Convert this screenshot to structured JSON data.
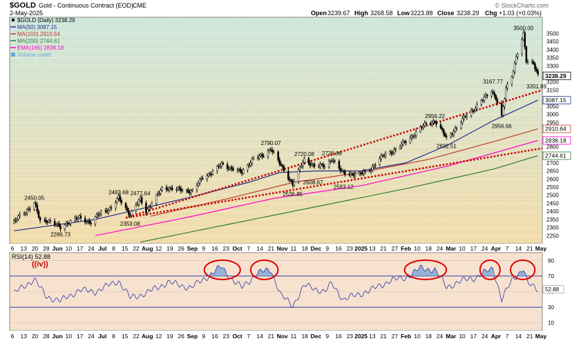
{
  "header": {
    "symbol": "$GOLD",
    "name": "Gold - Continuous Contract (EOD)",
    "exchange": "CME",
    "date": "2-May-2025",
    "open_label": "Open",
    "open": "3239.67",
    "high_label": "High",
    "high": "3268.58",
    "low_label": "Low",
    "low": "3223.88",
    "close_label": "Close",
    "close": "3238.29",
    "chg_label": "Chg",
    "chg": "+1.03 (+0.03%)",
    "watermark": "© StockCharts.com"
  },
  "legend": [
    {
      "text": "$GOLD (Daily) 3238.29",
      "color": "#000000",
      "kind": "price"
    },
    {
      "text": "MA(50) 3087.15",
      "color": "#1f2a8a",
      "kind": "line"
    },
    {
      "text": "MA(100) 2910.64",
      "color": "#c0392b",
      "kind": "line"
    },
    {
      "text": "MA(200) 2744.61",
      "color": "#2e7d32",
      "kind": "line"
    },
    {
      "text": "EMA(165) 2838.18",
      "color": "#ff00cc",
      "kind": "line"
    },
    {
      "text": "Volume undef",
      "color": "#66aadd",
      "kind": "box"
    }
  ],
  "rsi": {
    "label": "RSI(14) 52.88",
    "wave_label": "((iv))",
    "last_value": "52.88",
    "yticks": [
      "90",
      "70",
      "50",
      "30",
      "10"
    ],
    "overbought": 70,
    "oversold": 30
  },
  "colors": {
    "price_bg_top": "#cfe7dc",
    "price_bg_bottom": "#f3dcaa",
    "rsi_bg": "#f6e2cf",
    "ma50": "#1f2a8a",
    "ma100": "#c0392b",
    "ma200": "#2e7d32",
    "ema165": "#ff00cc",
    "trend": "#cc0000",
    "rsi_line": "#2233aa",
    "rsi_fill": "#7ea6d6"
  },
  "chart_data": {
    "type": "candlestick",
    "ylim": [
      2200,
      3600
    ],
    "yticks": [
      2250,
      2300,
      2350,
      2400,
      2450,
      2500,
      2550,
      2600,
      2650,
      2700,
      2750,
      2800,
      2850,
      2900,
      2950,
      3000,
      3050,
      3100,
      3150,
      3200,
      3250,
      3300,
      3350,
      3400,
      3450,
      3500
    ],
    "xticks": [
      "6",
      "13",
      "20",
      "28",
      "Jun",
      "10",
      "17",
      "24",
      "Jul",
      "8",
      "15",
      "22",
      "Aug",
      "12",
      "19",
      "26",
      "Sep",
      "9",
      "16",
      "23",
      "Oct",
      "7",
      "14",
      "21",
      "Nov",
      "11",
      "18",
      "Dec",
      "9",
      "16",
      "23",
      "2025",
      "13",
      "21",
      "27",
      "Feb",
      "10",
      "18",
      "24",
      "Mar",
      "10",
      "17",
      "24",
      "Apr",
      "7",
      "14",
      "21",
      "May"
    ],
    "bold_xticks": [
      "Jun",
      "Jul",
      "Aug",
      "Sep",
      "Oct",
      "Nov",
      "Dec",
      "2025",
      "Feb",
      "Mar",
      "Apr",
      "May"
    ],
    "close_path": [
      [
        "2024-05-06",
        2330
      ],
      [
        "2024-05-10",
        2375
      ],
      [
        "2024-05-17",
        2420
      ],
      [
        "2024-05-20",
        2450
      ],
      [
        "2024-05-24",
        2340
      ],
      [
        "2024-05-29",
        2345
      ],
      [
        "2024-06-07",
        2300
      ],
      [
        "2024-06-12",
        2330
      ],
      [
        "2024-06-20",
        2360
      ],
      [
        "2024-06-28",
        2330
      ],
      [
        "2024-07-05",
        2395
      ],
      [
        "2024-07-12",
        2420
      ],
      [
        "2024-07-17",
        2483
      ],
      [
        "2024-07-25",
        2380
      ],
      [
        "2024-08-01",
        2475
      ],
      [
        "2024-08-05",
        2400
      ],
      [
        "2024-08-16",
        2540
      ],
      [
        "2024-08-20",
        2545
      ],
      [
        "2024-08-30",
        2530
      ],
      [
        "2024-09-06",
        2525
      ],
      [
        "2024-09-13",
        2610
      ],
      [
        "2024-09-20",
        2645
      ],
      [
        "2024-09-26",
        2690
      ],
      [
        "2024-10-03",
        2665
      ],
      [
        "2024-10-10",
        2640
      ],
      [
        "2024-10-18",
        2730
      ],
      [
        "2024-10-24",
        2740
      ],
      [
        "2024-10-30",
        2790
      ],
      [
        "2024-11-06",
        2680
      ],
      [
        "2024-11-14",
        2570
      ],
      [
        "2024-11-22",
        2720
      ],
      [
        "2024-11-29",
        2680
      ],
      [
        "2024-12-06",
        2680
      ],
      [
        "2024-12-11",
        2725
      ],
      [
        "2024-12-18",
        2640
      ],
      [
        "2024-12-30",
        2625
      ],
      [
        "2025-01-07",
        2665
      ],
      [
        "2025-01-16",
        2750
      ],
      [
        "2025-01-24",
        2780
      ],
      [
        "2025-01-31",
        2835
      ],
      [
        "2025-02-07",
        2885
      ],
      [
        "2025-02-14",
        2945
      ],
      [
        "2025-02-20",
        2956
      ],
      [
        "2025-02-28",
        2855
      ],
      [
        "2025-03-07",
        2915
      ],
      [
        "2025-03-14",
        3000
      ],
      [
        "2025-03-20",
        3040
      ],
      [
        "2025-03-31",
        3150
      ],
      [
        "2025-04-03",
        3100
      ],
      [
        "2025-04-07",
        2980
      ],
      [
        "2025-04-10",
        3160
      ],
      [
        "2025-04-14",
        3240
      ],
      [
        "2025-04-17",
        3350
      ],
      [
        "2025-04-22",
        3490
      ],
      [
        "2025-04-24",
        3330
      ],
      [
        "2025-04-29",
        3320
      ],
      [
        "2025-05-02",
        3238
      ]
    ],
    "ma_lines": [
      {
        "name": "MA(50)",
        "key": "ma50",
        "points": [
          [
            "2024-05-06",
            2280
          ],
          [
            "2024-07-01",
            2350
          ],
          [
            "2024-09-01",
            2480
          ],
          [
            "2024-10-15",
            2580
          ],
          [
            "2024-11-05",
            2640
          ],
          [
            "2024-12-01",
            2650
          ],
          [
            "2024-12-31",
            2650
          ],
          [
            "2025-01-31",
            2700
          ],
          [
            "2025-03-01",
            2810
          ],
          [
            "2025-04-01",
            2960
          ],
          [
            "2025-05-02",
            3087
          ]
        ]
      },
      {
        "name": "MA(100)",
        "key": "ma100",
        "points": [
          [
            "2024-08-08",
            2370
          ],
          [
            "2024-10-01",
            2480
          ],
          [
            "2024-11-15",
            2580
          ],
          [
            "2024-12-31",
            2640
          ],
          [
            "2025-02-15",
            2720
          ],
          [
            "2025-04-01",
            2830
          ],
          [
            "2025-05-02",
            2910
          ]
        ]
      },
      {
        "name": "MA(200)",
        "key": "ma200",
        "points": [
          [
            "2024-08-01",
            2210
          ],
          [
            "2024-10-01",
            2320
          ],
          [
            "2024-12-01",
            2430
          ],
          [
            "2025-01-31",
            2540
          ],
          [
            "2025-04-01",
            2660
          ],
          [
            "2025-05-02",
            2744
          ]
        ]
      },
      {
        "name": "EMA(165)",
        "key": "ema165",
        "points": [
          [
            "2024-07-01",
            2250
          ],
          [
            "2024-09-01",
            2360
          ],
          [
            "2024-11-01",
            2480
          ],
          [
            "2025-01-01",
            2560
          ],
          [
            "2025-03-01",
            2680
          ],
          [
            "2025-05-02",
            2838
          ]
        ]
      }
    ],
    "trendlines": [
      {
        "start": [
          "2024-07-22",
          2360
        ],
        "end": [
          "2025-05-05",
          3150
        ]
      },
      {
        "start": [
          "2024-07-22",
          2360
        ],
        "end": [
          "2025-05-05",
          2790
        ]
      }
    ],
    "annotations": [
      {
        "label": "2450.05",
        "date": "2024-05-20",
        "value": 2450
      },
      {
        "label": "2286.73",
        "date": "2024-06-07",
        "value": 2287
      },
      {
        "label": "2483.68",
        "date": "2024-07-17",
        "value": 2484
      },
      {
        "label": "2477.64",
        "date": "2024-08-01",
        "value": 2478
      },
      {
        "label": "2353.08",
        "date": "2024-07-25",
        "value": 2353
      },
      {
        "label": "2790.07",
        "date": "2024-10-30",
        "value": 2790
      },
      {
        "label": "2720.08",
        "date": "2024-11-22",
        "value": 2720
      },
      {
        "label": "2726.08",
        "date": "2024-12-11",
        "value": 2726
      },
      {
        "label": "2608.67",
        "date": "2024-11-28",
        "value": 2609
      },
      {
        "label": "2536.85",
        "date": "2024-11-14",
        "value": 2537
      },
      {
        "label": "2583.12",
        "date": "2024-12-19",
        "value": 2583
      },
      {
        "label": "2956.22",
        "date": "2025-02-20",
        "value": 2956
      },
      {
        "label": "2832.51",
        "date": "2025-02-28",
        "value": 2833
      },
      {
        "label": "3167.77",
        "date": "2025-04-01",
        "value": 3168
      },
      {
        "label": "2956.66",
        "date": "2025-04-07",
        "value": 2957
      },
      {
        "label": "3500.00",
        "date": "2025-04-22",
        "value": 3500
      },
      {
        "label": "3201.89",
        "date": "2025-05-01",
        "value": 3202
      }
    ],
    "price_tags": [
      {
        "label": "3238.29",
        "value": 3238,
        "key": "price"
      },
      {
        "label": "3087.15",
        "value": 3087,
        "key": "ma50"
      },
      {
        "label": "2910.64",
        "value": 2910,
        "key": "ma100"
      },
      {
        "label": "2838.18",
        "value": 2838,
        "key": "ema165"
      },
      {
        "label": "2744.61",
        "value": 2744,
        "key": "ma200"
      }
    ],
    "rsi_series": [
      [
        "2024-05-06",
        48
      ],
      [
        "2024-05-20",
        66
      ],
      [
        "2024-05-28",
        44
      ],
      [
        "2024-06-07",
        38
      ],
      [
        "2024-06-20",
        52
      ],
      [
        "2024-07-01",
        50
      ],
      [
        "2024-07-17",
        64
      ],
      [
        "2024-07-25",
        42
      ],
      [
        "2024-08-05",
        48
      ],
      [
        "2024-08-20",
        62
      ],
      [
        "2024-09-05",
        55
      ],
      [
        "2024-09-20",
        74
      ],
      [
        "2024-09-26",
        82
      ],
      [
        "2024-10-03",
        66
      ],
      [
        "2024-10-10",
        55
      ],
      [
        "2024-10-21",
        74
      ],
      [
        "2024-10-30",
        78
      ],
      [
        "2024-11-06",
        45
      ],
      [
        "2024-11-14",
        32
      ],
      [
        "2024-11-22",
        58
      ],
      [
        "2024-12-06",
        50
      ],
      [
        "2024-12-11",
        60
      ],
      [
        "2024-12-19",
        40
      ],
      [
        "2025-01-07",
        52
      ],
      [
        "2025-01-20",
        64
      ],
      [
        "2025-01-31",
        68
      ],
      [
        "2025-02-10",
        80
      ],
      [
        "2025-02-20",
        78
      ],
      [
        "2025-02-28",
        56
      ],
      [
        "2025-03-14",
        66
      ],
      [
        "2025-03-20",
        68
      ],
      [
        "2025-04-01",
        80
      ],
      [
        "2025-04-07",
        40
      ],
      [
        "2025-04-14",
        64
      ],
      [
        "2025-04-22",
        80
      ],
      [
        "2025-04-25",
        60
      ],
      [
        "2025-05-02",
        53
      ]
    ],
    "rsi_highlights": [
      {
        "start": "2024-09-16",
        "end": "2024-10-07"
      },
      {
        "start": "2024-10-18",
        "end": "2024-11-02"
      },
      {
        "start": "2025-02-01",
        "end": "2025-02-26"
      },
      {
        "start": "2025-03-25",
        "end": "2025-04-04"
      },
      {
        "start": "2025-04-15",
        "end": "2025-04-28"
      }
    ],
    "date_range": [
      "2024-05-03",
      "2025-05-05"
    ]
  }
}
